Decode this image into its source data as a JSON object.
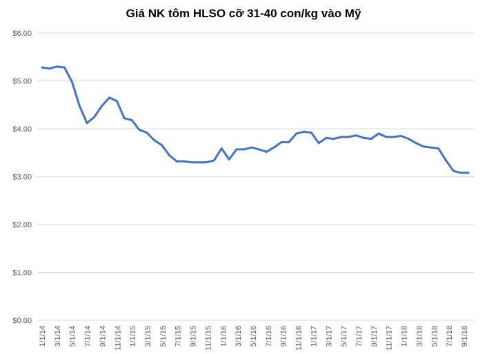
{
  "chart_data": {
    "type": "line",
    "title": "Giá NK tôm HLSO cỡ 31-40 con/kg vào Mỹ",
    "xlabel": "",
    "ylabel": "",
    "ylim": [
      0,
      6
    ],
    "yticks": [
      "$0.00",
      "$1.00",
      "$2.00",
      "$3.00",
      "$4.00",
      "$5.00",
      "$6.00"
    ],
    "ytick_values": [
      0,
      1,
      2,
      3,
      4,
      5,
      6
    ],
    "xtick_labels": [
      "1/1/14",
      "3/1/14",
      "5/1/14",
      "7/1/14",
      "9/1/14",
      "11/1/14",
      "1/1/15",
      "3/1/15",
      "5/1/15",
      "7/1/15",
      "9/1/15",
      "11/1/15",
      "1/1/16",
      "3/1/16",
      "5/1/16",
      "7/1/16",
      "9/1/16",
      "11/1/16",
      "1/1/17",
      "3/1/17",
      "5/1/17",
      "7/1/17",
      "9/1/17",
      "11/1/17",
      "1/1/18",
      "3/1/18",
      "5/1/18",
      "7/1/18",
      "9/1/18"
    ],
    "grid": true,
    "line_color": "#4472c4",
    "series": [
      {
        "values": [
          5.28,
          5.26,
          5.3,
          5.28,
          4.98,
          4.48,
          4.12,
          4.25,
          4.48,
          4.65,
          4.58,
          4.22,
          4.18,
          3.98,
          3.92,
          3.76,
          3.66,
          3.45,
          3.32,
          3.32,
          3.3,
          3.3,
          3.3,
          3.34,
          3.59,
          3.36,
          3.57,
          3.57,
          3.61,
          3.57,
          3.52,
          3.61,
          3.72,
          3.72,
          3.9,
          3.94,
          3.92,
          3.7,
          3.81,
          3.79,
          3.83,
          3.83,
          3.86,
          3.81,
          3.79,
          3.9,
          3.83,
          3.83,
          3.85,
          3.79,
          3.7,
          3.63,
          3.61,
          3.59,
          3.34,
          3.12,
          3.08,
          3.08
        ]
      }
    ]
  }
}
